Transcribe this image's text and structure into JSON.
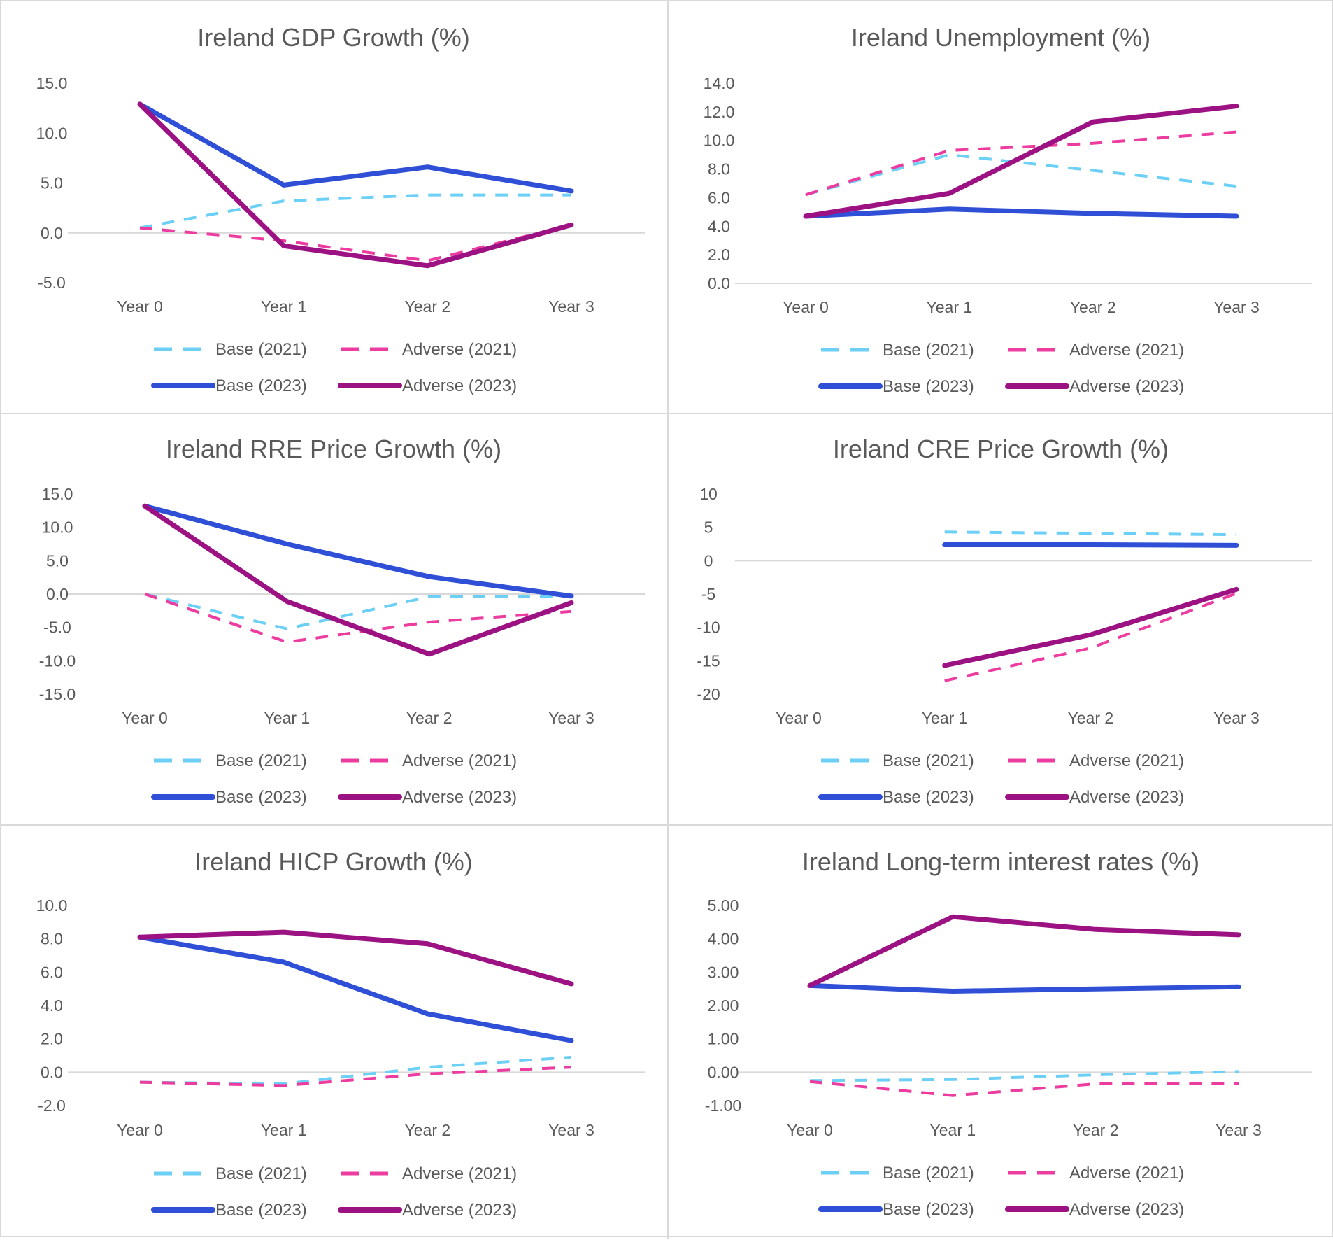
{
  "legend": {
    "base_2021": "Base (2021)",
    "adverse_2021": "Adverse (2021)",
    "base_2023": "Base (2023)",
    "adverse_2023": "Adverse (2023)"
  },
  "colors": {
    "base_2021": "#6ccff6",
    "adverse_2021": "#ec3ca0",
    "base_2023": "#2f4fd6",
    "adverse_2023": "#9c1283",
    "text": "#595959",
    "axis": "#d9d9d9"
  },
  "chart_data": [
    {
      "type": "line",
      "title": "Ireland GDP Growth (%)",
      "categories": [
        "Year 0",
        "Year 1",
        "Year 2",
        "Year 3"
      ],
      "ylim": [
        -5,
        15
      ],
      "yticks": [
        "15.0",
        "10.0",
        "5.0",
        "0.0",
        "-5.0"
      ],
      "series": [
        {
          "name": "Base (2021)",
          "values": [
            0.5,
            3.2,
            3.8,
            3.8
          ]
        },
        {
          "name": "Adverse (2021)",
          "values": [
            0.5,
            -0.8,
            -2.8,
            0.8
          ]
        },
        {
          "name": "Base (2023)",
          "values": [
            12.9,
            4.8,
            6.6,
            4.2
          ]
        },
        {
          "name": "Adverse (2023)",
          "values": [
            12.9,
            -1.3,
            -3.3,
            0.8
          ]
        }
      ]
    },
    {
      "type": "line",
      "title": "Ireland Unemployment (%)",
      "categories": [
        "Year 0",
        "Year 1",
        "Year 2",
        "Year 3"
      ],
      "ylim": [
        0,
        14
      ],
      "yticks": [
        "14.0",
        "12.0",
        "10.0",
        "8.0",
        "6.0",
        "4.0",
        "2.0",
        "0.0"
      ],
      "series": [
        {
          "name": "Base (2021)",
          "values": [
            6.2,
            9.0,
            7.9,
            6.8
          ]
        },
        {
          "name": "Adverse (2021)",
          "values": [
            6.2,
            9.3,
            9.8,
            10.6
          ]
        },
        {
          "name": "Base (2023)",
          "values": [
            4.7,
            5.2,
            4.9,
            4.7
          ]
        },
        {
          "name": "Adverse (2023)",
          "values": [
            4.7,
            6.3,
            11.3,
            12.4
          ]
        }
      ]
    },
    {
      "type": "line",
      "title": "Ireland RRE Price Growth (%)",
      "categories": [
        "Year 0",
        "Year 1",
        "Year 2",
        "Year 3"
      ],
      "ylim": [
        -15,
        15
      ],
      "yticks": [
        "15.0",
        "10.0",
        "5.0",
        "0.0",
        "-5.0",
        "-10.0",
        "-15.0"
      ],
      "series": [
        {
          "name": "Base (2021)",
          "values": [
            0.0,
            -5.2,
            -0.4,
            -0.3
          ]
        },
        {
          "name": "Adverse (2021)",
          "values": [
            0.0,
            -7.2,
            -4.2,
            -2.6
          ]
        },
        {
          "name": "Base (2023)",
          "values": [
            13.2,
            7.5,
            2.6,
            -0.3
          ]
        },
        {
          "name": "Adverse (2023)",
          "values": [
            13.2,
            -1.1,
            -9.0,
            -1.3
          ]
        }
      ]
    },
    {
      "type": "line",
      "title": "Ireland CRE Price Growth (%)",
      "categories": [
        "Year 0",
        "Year 1",
        "Year 2",
        "Year 3"
      ],
      "ylim": [
        -20,
        10
      ],
      "yticks": [
        "10",
        "5",
        "0",
        "-5",
        "-10",
        "-15",
        "-20"
      ],
      "series": [
        {
          "name": "Base (2021)",
          "values": [
            null,
            4.3,
            4.1,
            3.9
          ]
        },
        {
          "name": "Adverse (2021)",
          "values": [
            null,
            -18.0,
            -13.1,
            -4.9
          ]
        },
        {
          "name": "Base (2023)",
          "values": [
            null,
            2.4,
            2.4,
            2.3
          ]
        },
        {
          "name": "Adverse (2023)",
          "values": [
            null,
            -15.7,
            -11.1,
            -4.3
          ]
        }
      ]
    },
    {
      "type": "line",
      "title": "Ireland HICP Growth (%)",
      "categories": [
        "Year 0",
        "Year 1",
        "Year 2",
        "Year 3"
      ],
      "ylim": [
        -2,
        10
      ],
      "yticks": [
        "10.0",
        "8.0",
        "6.0",
        "4.0",
        "2.0",
        "0.0",
        "-2.0"
      ],
      "series": [
        {
          "name": "Base (2021)",
          "values": [
            -0.6,
            -0.7,
            0.3,
            0.9
          ]
        },
        {
          "name": "Adverse (2021)",
          "values": [
            -0.6,
            -0.8,
            -0.1,
            0.3
          ]
        },
        {
          "name": "Base (2023)",
          "values": [
            8.1,
            6.6,
            3.5,
            1.9
          ]
        },
        {
          "name": "Adverse (2023)",
          "values": [
            8.1,
            8.4,
            7.7,
            5.3
          ]
        }
      ]
    },
    {
      "type": "line",
      "title": "Ireland Long-term interest rates (%)",
      "categories": [
        "Year 0",
        "Year 1",
        "Year 2",
        "Year 3"
      ],
      "ylim": [
        -1,
        5
      ],
      "yticks": [
        "5.00",
        "4.00",
        "3.00",
        "2.00",
        "1.00",
        "0.00",
        "-1.00"
      ],
      "series": [
        {
          "name": "Base (2021)",
          "values": [
            -0.25,
            -0.22,
            -0.08,
            0.02
          ]
        },
        {
          "name": "Adverse (2021)",
          "values": [
            -0.28,
            -0.7,
            -0.35,
            -0.35
          ]
        },
        {
          "name": "Base (2023)",
          "values": [
            2.6,
            2.43,
            2.5,
            2.56
          ]
        },
        {
          "name": "Adverse (2023)",
          "values": [
            2.6,
            4.66,
            4.28,
            4.12
          ]
        }
      ]
    }
  ]
}
